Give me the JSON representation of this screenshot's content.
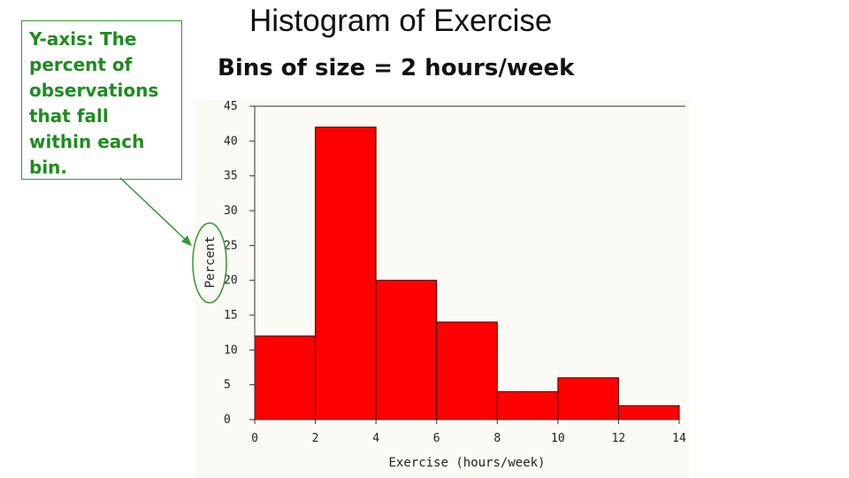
{
  "callout": {
    "lines": [
      "Y-axis: The",
      "percent of",
      "observations",
      "that fall",
      "within each",
      "bin."
    ]
  },
  "title": "Histogram of Exercise",
  "subtitle": "Bins of size = 2 hours/week",
  "colors": {
    "bar": "#ff0000",
    "callout": "#1e8c1e",
    "axis": "#333333"
  },
  "chart_data": {
    "type": "bar",
    "xlabel": "Exercise (hours/week)",
    "ylabel": "Percent",
    "bins": [
      [
        0,
        2
      ],
      [
        2,
        4
      ],
      [
        4,
        6
      ],
      [
        6,
        8
      ],
      [
        8,
        10
      ],
      [
        10,
        12
      ],
      [
        12,
        14
      ]
    ],
    "values": [
      12,
      42,
      20,
      14,
      4,
      6,
      2
    ],
    "xticks": [
      0,
      2,
      4,
      6,
      8,
      10,
      12,
      14
    ],
    "yticks": [
      0,
      5,
      10,
      15,
      20,
      25,
      30,
      35,
      40,
      45
    ],
    "xlim": [
      0,
      14
    ],
    "ylim": [
      0,
      45
    ],
    "grid": false
  }
}
